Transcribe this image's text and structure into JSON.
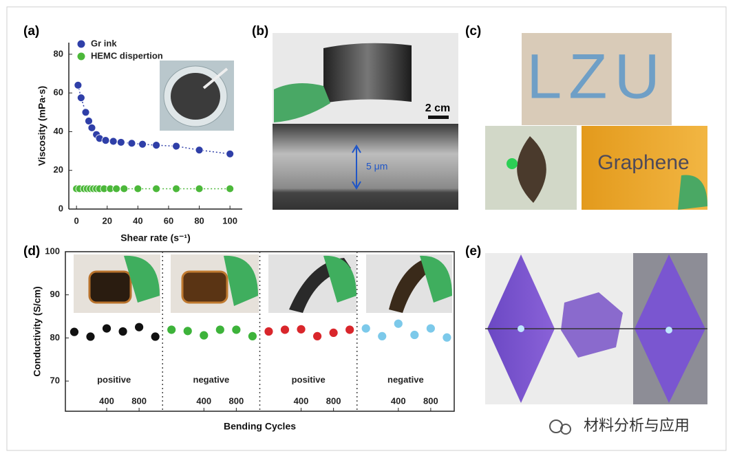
{
  "panel_labels": [
    "(a)",
    "(b)",
    "(c)",
    "(d)",
    "(e)"
  ],
  "chart_data": [
    {
      "type": "scatter",
      "x_label": "Shear rate (s⁻¹)",
      "y_label": "Viscosity (mPa·s)",
      "xlim": [
        -5,
        108
      ],
      "xticks": [
        0,
        20,
        40,
        60,
        80,
        100
      ],
      "ylim": [
        0,
        86
      ],
      "yticks": [
        0,
        20,
        40,
        60,
        80
      ],
      "series": [
        {
          "name": "Gr ink",
          "color": "#2f3fa8",
          "x": [
            1,
            3,
            6,
            8,
            10,
            13,
            15,
            19,
            24,
            29,
            36,
            43,
            52,
            65,
            80,
            100
          ],
          "values": [
            64,
            57.5,
            50,
            45.5,
            42,
            38.5,
            36.5,
            35.5,
            35,
            34.5,
            34,
            33.5,
            33,
            32.5,
            30.5,
            28.5
          ]
        },
        {
          "name": "HEMC dispertion",
          "color": "#4cb83a",
          "x": [
            0,
            2,
            5,
            7,
            9,
            11,
            13,
            15,
            18,
            22,
            26,
            31,
            40,
            52,
            65,
            80,
            100
          ],
          "values": [
            10.5,
            10.5,
            10.5,
            10.5,
            10.5,
            10.5,
            10.5,
            10.5,
            10.5,
            10.5,
            10.5,
            10.5,
            10.5,
            10.5,
            10.5,
            10.5,
            10.5
          ]
        }
      ]
    },
    {
      "type": "scatter",
      "x_label": "Bending Cycles",
      "y_label": "Conductivity (S/cm)",
      "xlim": [
        -110,
        1090
      ],
      "xticks": [
        400,
        800
      ],
      "ylim": [
        63,
        100
      ],
      "yticks": [
        70,
        80,
        90,
        100
      ],
      "series": [
        {
          "name": "positive",
          "color": "#111111",
          "x": [
            0,
            200,
            400,
            600,
            800,
            1000
          ],
          "values": [
            81.4,
            80.3,
            82.2,
            81.5,
            82.5,
            80.3
          ]
        },
        {
          "name": "negative",
          "color": "#3db33a",
          "x": [
            0,
            200,
            400,
            600,
            800,
            1000
          ],
          "values": [
            81.9,
            81.6,
            80.6,
            81.9,
            81.9,
            80.4
          ]
        },
        {
          "name": "positive",
          "color": "#d9262b",
          "x": [
            0,
            200,
            400,
            600,
            800,
            1000
          ],
          "values": [
            81.5,
            81.9,
            82.0,
            80.4,
            81.2,
            81.9
          ]
        },
        {
          "name": "negative",
          "color": "#7cc9ea",
          "x": [
            0,
            200,
            400,
            600,
            800,
            1000
          ],
          "values": [
            82.2,
            80.4,
            83.3,
            80.7,
            82.2,
            80.1
          ]
        }
      ]
    }
  ],
  "photo_texts": {
    "scale_bar": "2 cm",
    "thickness": "5 μm",
    "letters": "LZU",
    "word": "Graphene"
  },
  "watermark": "材料分析与应用"
}
